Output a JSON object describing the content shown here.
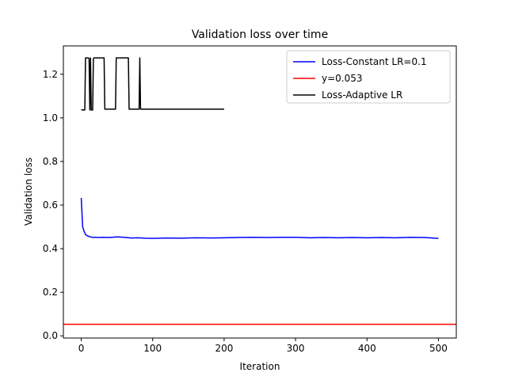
{
  "chart_data": {
    "type": "line",
    "title": "Validation loss over time",
    "xlabel": "Iteration",
    "ylabel": "Validation loss",
    "xlim": [
      -25,
      525
    ],
    "ylim": [
      -0.01,
      1.33
    ],
    "xticks": [
      0,
      100,
      200,
      300,
      400,
      500
    ],
    "yticks": [
      0.0,
      0.2,
      0.4,
      0.6,
      0.8,
      1.0,
      1.2
    ],
    "xtick_labels": [
      "0",
      "100",
      "200",
      "300",
      "400",
      "500"
    ],
    "ytick_labels": [
      "0.0",
      "0.2",
      "0.4",
      "0.6",
      "0.8",
      "1.0",
      "1.2"
    ],
    "grid": false,
    "legend_position": "top-right",
    "series": [
      {
        "name": "Loss-Constant LR=0.1",
        "color": "#0000ff",
        "x": [
          0,
          2,
          4,
          6,
          8,
          10,
          12,
          15,
          20,
          25,
          30,
          40,
          50,
          60,
          70,
          80,
          90,
          100,
          120,
          140,
          160,
          180,
          200,
          220,
          240,
          260,
          280,
          300,
          320,
          340,
          360,
          380,
          400,
          420,
          440,
          460,
          480,
          500
        ],
        "values": [
          0.633,
          0.5,
          0.48,
          0.465,
          0.46,
          0.457,
          0.455,
          0.452,
          0.452,
          0.451,
          0.452,
          0.451,
          0.454,
          0.452,
          0.449,
          0.45,
          0.448,
          0.447,
          0.449,
          0.448,
          0.45,
          0.449,
          0.45,
          0.451,
          0.452,
          0.451,
          0.452,
          0.452,
          0.45,
          0.451,
          0.45,
          0.451,
          0.45,
          0.451,
          0.45,
          0.452,
          0.451,
          0.447
        ]
      },
      {
        "name": "y=0.053",
        "color": "#ff0000",
        "type": "hline",
        "y": 0.053
      },
      {
        "name": "Loss-Adaptive LR",
        "color": "#000000",
        "x": [
          0,
          3,
          5,
          6,
          10,
          11,
          12,
          13,
          14,
          16,
          17,
          18,
          20,
          30,
          32,
          33,
          45,
          48,
          49,
          50,
          52,
          66,
          67,
          68,
          80,
          81,
          82,
          83,
          84,
          86,
          200
        ],
        "values": [
          1.038,
          1.036,
          1.036,
          1.275,
          1.275,
          1.272,
          1.036,
          1.275,
          1.036,
          1.036,
          1.272,
          1.275,
          1.275,
          1.275,
          1.275,
          1.04,
          1.04,
          1.04,
          1.275,
          1.275,
          1.275,
          1.275,
          1.04,
          1.04,
          1.04,
          1.04,
          1.275,
          1.04,
          1.04,
          1.04,
          1.04
        ]
      }
    ]
  }
}
